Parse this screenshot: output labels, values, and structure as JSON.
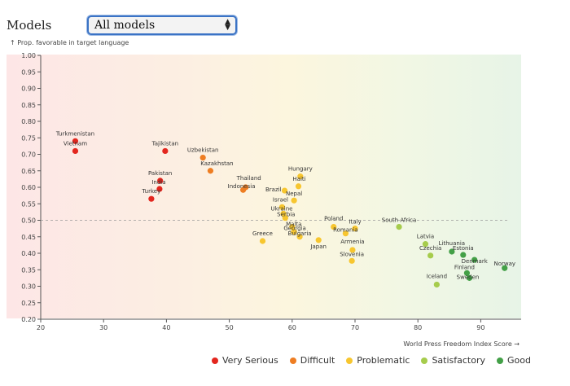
{
  "controls": {
    "models_label": "Models",
    "selected_model": "All models"
  },
  "colors": {
    "very_serious": "#e3261e",
    "difficult": "#ee7d22",
    "problematic": "#f7c62f",
    "satisfactory": "#a6cc4c",
    "good": "#43a047"
  },
  "legend": {
    "very_serious": "Very Serious",
    "difficult": "Difficult",
    "problematic": "Problematic",
    "satisfactory": "Satisfactory",
    "good": "Good"
  },
  "chart_data": {
    "type": "scatter",
    "ylabel": "↑ Prop. favorable in target language",
    "xlabel": "World Press Freedom Index Score →",
    "xlim": [
      20,
      96
    ],
    "ylim": [
      0.2,
      1.0
    ],
    "x_ticks": [
      20,
      30,
      40,
      50,
      60,
      70,
      80,
      90
    ],
    "y_ticks": [
      0.2,
      0.25,
      0.3,
      0.35,
      0.4,
      0.45,
      0.5,
      0.55,
      0.6,
      0.65,
      0.7,
      0.75,
      0.8,
      0.85,
      0.9,
      0.95,
      1.0
    ],
    "reference_line": 0.5,
    "points": [
      {
        "label": "Turkmenistan",
        "x": 25.5,
        "y": 0.74,
        "category": "very_serious"
      },
      {
        "label": "Vietnam",
        "x": 25.5,
        "y": 0.71,
        "category": "very_serious"
      },
      {
        "label": "Tajikistan",
        "x": 39.8,
        "y": 0.71,
        "category": "very_serious"
      },
      {
        "label": "Pakistan",
        "x": 39.0,
        "y": 0.62,
        "category": "very_serious"
      },
      {
        "label": "India",
        "x": 38.9,
        "y": 0.595,
        "category": "very_serious"
      },
      {
        "label": "Turkey",
        "x": 37.6,
        "y": 0.565,
        "category": "very_serious"
      },
      {
        "label": "Uzbekistan",
        "x": 45.8,
        "y": 0.69,
        "category": "difficult"
      },
      {
        "label": "Kazakhstan",
        "x": 47.0,
        "y": 0.65,
        "category": "difficult"
      },
      {
        "label": "Thailand",
        "x": 52.6,
        "y": 0.6,
        "category": "difficult"
      },
      {
        "label": "Indonesia",
        "x": 52.2,
        "y": 0.592,
        "category": "difficult"
      },
      {
        "label": "Hungary",
        "x": 61.3,
        "y": 0.633,
        "category": "problematic"
      },
      {
        "label": "Haiti",
        "x": 61.0,
        "y": 0.603,
        "category": "problematic"
      },
      {
        "label": "Brazil",
        "x": 58.8,
        "y": 0.59,
        "category": "problematic"
      },
      {
        "label": "Nepal",
        "x": 60.3,
        "y": 0.56,
        "category": "problematic"
      },
      {
        "label": "Israel",
        "x": 58.4,
        "y": 0.54,
        "category": "problematic"
      },
      {
        "label": "Ukraine",
        "x": 58.6,
        "y": 0.52,
        "category": "problematic"
      },
      {
        "label": "Serbia",
        "x": 58.9,
        "y": 0.507,
        "category": "problematic"
      },
      {
        "label": "Malta",
        "x": 60.0,
        "y": 0.48,
        "category": "problematic"
      },
      {
        "label": "Georgia",
        "x": 60.3,
        "y": 0.465,
        "category": "problematic"
      },
      {
        "label": "Bulgaria",
        "x": 61.2,
        "y": 0.45,
        "category": "problematic"
      },
      {
        "label": "Greece",
        "x": 55.3,
        "y": 0.437,
        "category": "problematic"
      },
      {
        "label": "Japan",
        "x": 64.2,
        "y": 0.44,
        "category": "problematic"
      },
      {
        "label": "Poland",
        "x": 66.6,
        "y": 0.48,
        "category": "problematic"
      },
      {
        "label": "Romania",
        "x": 68.5,
        "y": 0.46,
        "category": "problematic"
      },
      {
        "label": "Italy",
        "x": 70.0,
        "y": 0.475,
        "category": "problematic"
      },
      {
        "label": "Armenia",
        "x": 69.6,
        "y": 0.41,
        "category": "problematic"
      },
      {
        "label": "Slovenia",
        "x": 69.5,
        "y": 0.377,
        "category": "problematic"
      },
      {
        "label": "South Africa",
        "x": 77.0,
        "y": 0.48,
        "category": "satisfactory"
      },
      {
        "label": "Latvia",
        "x": 81.2,
        "y": 0.428,
        "category": "satisfactory"
      },
      {
        "label": "Czechia",
        "x": 82.0,
        "y": 0.393,
        "category": "satisfactory"
      },
      {
        "label": "Iceland",
        "x": 83.0,
        "y": 0.305,
        "category": "satisfactory"
      },
      {
        "label": "Lithuania",
        "x": 85.4,
        "y": 0.405,
        "category": "good"
      },
      {
        "label": "Estonia",
        "x": 87.2,
        "y": 0.395,
        "category": "good"
      },
      {
        "label": "Denmark",
        "x": 89.0,
        "y": 0.38,
        "category": "good"
      },
      {
        "label": "Finland",
        "x": 87.8,
        "y": 0.34,
        "category": "good"
      },
      {
        "label": "Sweden",
        "x": 88.2,
        "y": 0.325,
        "category": "good"
      },
      {
        "label": "Norway",
        "x": 93.8,
        "y": 0.355,
        "category": "good"
      }
    ]
  }
}
